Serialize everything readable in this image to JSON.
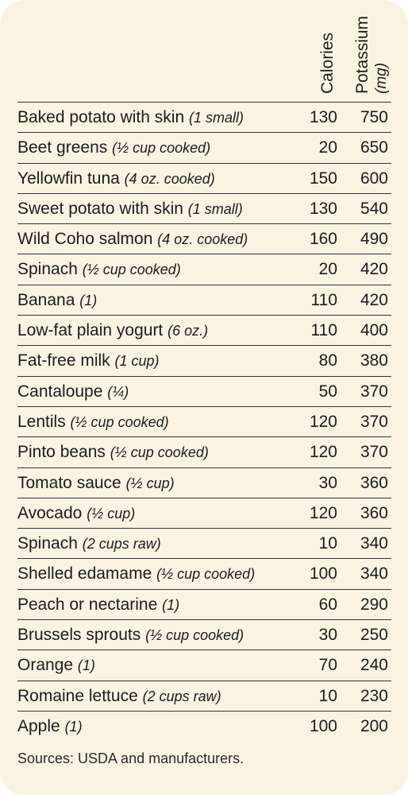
{
  "chart_data": {
    "type": "table",
    "columns": [
      "Calories",
      "Potassium",
      "(mg)"
    ],
    "rows": [
      {
        "food": "Baked potato with skin",
        "portion": "(1 small)",
        "calories": 130,
        "potassium": 750
      },
      {
        "food": "Beet greens",
        "portion": "(½ cup cooked)",
        "calories": 20,
        "potassium": 650
      },
      {
        "food": "Yellowfin tuna",
        "portion": "(4 oz. cooked)",
        "calories": 150,
        "potassium": 600
      },
      {
        "food": "Sweet potato with skin",
        "portion": "(1 small)",
        "calories": 130,
        "potassium": 540
      },
      {
        "food": "Wild Coho salmon",
        "portion": "(4 oz. cooked)",
        "calories": 160,
        "potassium": 490
      },
      {
        "food": "Spinach",
        "portion": "(½ cup cooked)",
        "calories": 20,
        "potassium": 420
      },
      {
        "food": "Banana",
        "portion": "(1)",
        "calories": 110,
        "potassium": 420
      },
      {
        "food": "Low-fat plain yogurt",
        "portion": "(6 oz.)",
        "calories": 110,
        "potassium": 400
      },
      {
        "food": "Fat-free milk",
        "portion": "(1 cup)",
        "calories": 80,
        "potassium": 380
      },
      {
        "food": "Cantaloupe",
        "portion": "(¼)",
        "calories": 50,
        "potassium": 370
      },
      {
        "food": "Lentils",
        "portion": "(½ cup cooked)",
        "calories": 120,
        "potassium": 370
      },
      {
        "food": "Pinto beans",
        "portion": "(½ cup cooked)",
        "calories": 120,
        "potassium": 370
      },
      {
        "food": "Tomato sauce",
        "portion": "(½ cup)",
        "calories": 30,
        "potassium": 360
      },
      {
        "food": "Avocado",
        "portion": "(½ cup)",
        "calories": 120,
        "potassium": 360
      },
      {
        "food": "Spinach",
        "portion": "(2 cups raw)",
        "calories": 10,
        "potassium": 340
      },
      {
        "food": "Shelled edamame",
        "portion": "(½ cup cooked)",
        "calories": 100,
        "potassium": 340
      },
      {
        "food": "Peach or nectarine",
        "portion": "(1)",
        "calories": 60,
        "potassium": 290
      },
      {
        "food": "Brussels sprouts",
        "portion": "(½ cup cooked)",
        "calories": 30,
        "potassium": 250
      },
      {
        "food": "Orange",
        "portion": "(1)",
        "calories": 70,
        "potassium": 240
      },
      {
        "food": "Romaine lettuce",
        "portion": "(2 cups raw)",
        "calories": 10,
        "potassium": 230
      },
      {
        "food": "Apple",
        "portion": "(1)",
        "calories": 100,
        "potassium": 200
      }
    ],
    "source": "Sources: USDA and manufacturers.",
    "colors": {
      "background": "#fbf3e2",
      "text": "#1c1c1c",
      "rule": "#333333"
    }
  }
}
